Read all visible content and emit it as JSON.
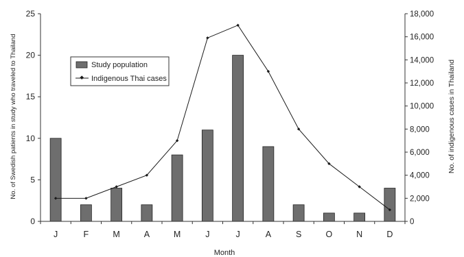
{
  "chart_data": {
    "type": "bar+line",
    "categories": [
      "J",
      "F",
      "M",
      "A",
      "M",
      "J",
      "J",
      "A",
      "S",
      "O",
      "N",
      "D"
    ],
    "series": [
      {
        "name": "Study population",
        "type": "bar",
        "axis": "left",
        "values": [
          10,
          2,
          4,
          2,
          8,
          11,
          20,
          9,
          2,
          1,
          1,
          4
        ],
        "color": "#6e6e6e"
      },
      {
        "name": "Indigenous Thai cases",
        "type": "line",
        "axis": "right",
        "values": [
          2000,
          2000,
          3000,
          4000,
          7000,
          15900,
          17000,
          13000,
          8000,
          5000,
          3000,
          1000
        ],
        "color": "#1a1a1a"
      }
    ],
    "xlabel": "Month",
    "ylabel": "No. of Swedish patients in study who traveled to Thailand",
    "y2label": "No. of indigenous cases in Thailand",
    "ylim": [
      0,
      25
    ],
    "y2lim": [
      0,
      18000
    ],
    "yticks": [
      "0",
      "5",
      "10",
      "15",
      "20",
      "25"
    ],
    "y2ticks": [
      "0",
      "2,000",
      "4,000",
      "6,000",
      "8,000",
      "10,000",
      "12,000",
      "14,000",
      "16,000",
      "18,000"
    ],
    "grid": false,
    "legend": "upper-left"
  }
}
